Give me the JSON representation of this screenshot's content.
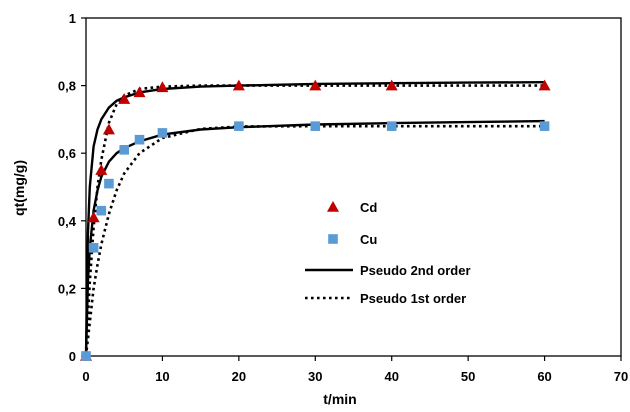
{
  "chart_data": {
    "type": "scatter",
    "title": "",
    "xlabel": "t/min",
    "ylabel": "qt(mg/g)",
    "xlim": [
      0,
      70
    ],
    "ylim": [
      0,
      1
    ],
    "x_ticks": [
      0,
      10,
      20,
      30,
      40,
      50,
      60,
      70
    ],
    "y_ticks": [
      0,
      0.2,
      0.4,
      0.6,
      0.8,
      1
    ],
    "x_tick_labels": [
      "0",
      "10",
      "20",
      "30",
      "40",
      "50",
      "60",
      "70"
    ],
    "y_tick_labels": [
      "0",
      "0,2",
      "0,4",
      "0,6",
      "0,8",
      "1"
    ],
    "grid": false,
    "legend_position": "center-right",
    "series": [
      {
        "name": "Cd",
        "kind": "markers",
        "marker": "triangle",
        "color": "#c00000",
        "x": [
          0,
          1,
          2,
          3,
          5,
          7,
          10,
          20,
          30,
          40,
          60
        ],
        "y": [
          0,
          0.41,
          0.55,
          0.67,
          0.76,
          0.78,
          0.795,
          0.8,
          0.8,
          0.8,
          0.8
        ]
      },
      {
        "name": "Cu",
        "kind": "markers",
        "marker": "square",
        "color": "#5b9bd5",
        "x": [
          0,
          1,
          2,
          3,
          5,
          7,
          10,
          20,
          30,
          40,
          60
        ],
        "y": [
          0,
          0.32,
          0.43,
          0.51,
          0.61,
          0.64,
          0.66,
          0.68,
          0.68,
          0.68,
          0.68
        ]
      },
      {
        "name": "Pseudo 2nd order",
        "kind": "line",
        "dash": "solid",
        "color": "#000000",
        "curves": [
          {
            "x": [
              0,
              0.25,
              0.5,
              1,
              1.5,
              2,
              3,
              4,
              5,
              7,
              10,
              15,
              20,
              30,
              40,
              50,
              60
            ],
            "y": [
              0,
              0.36,
              0.5,
              0.62,
              0.67,
              0.7,
              0.735,
              0.755,
              0.765,
              0.78,
              0.79,
              0.797,
              0.8,
              0.805,
              0.807,
              0.809,
              0.81
            ]
          },
          {
            "x": [
              0,
              0.25,
              0.5,
              1,
              1.5,
              2,
              3,
              4,
              5,
              7,
              10,
              15,
              20,
              30,
              40,
              50,
              60
            ],
            "y": [
              0,
              0.22,
              0.32,
              0.43,
              0.49,
              0.53,
              0.575,
              0.6,
              0.615,
              0.635,
              0.655,
              0.67,
              0.677,
              0.685,
              0.689,
              0.692,
              0.695
            ]
          }
        ]
      },
      {
        "name": "Pseudo 1st order",
        "kind": "line",
        "dash": "dotted",
        "color": "#000000",
        "curves": [
          {
            "x": [
              0,
              0.5,
              1,
              1.5,
              2,
              3,
              4,
              5,
              7,
              10,
              15,
              20,
              30,
              40,
              50,
              60
            ],
            "y": [
              0,
              0.22,
              0.38,
              0.5,
              0.58,
              0.69,
              0.745,
              0.77,
              0.79,
              0.797,
              0.8,
              0.8,
              0.8,
              0.8,
              0.8,
              0.8
            ]
          },
          {
            "x": [
              0,
              0.5,
              1,
              1.5,
              2,
              3,
              4,
              5,
              7,
              10,
              15,
              20,
              30,
              40,
              50,
              60
            ],
            "y": [
              0,
              0.1,
              0.2,
              0.27,
              0.33,
              0.42,
              0.49,
              0.54,
              0.6,
              0.645,
              0.672,
              0.679,
              0.68,
              0.68,
              0.68,
              0.68
            ]
          }
        ]
      }
    ]
  }
}
